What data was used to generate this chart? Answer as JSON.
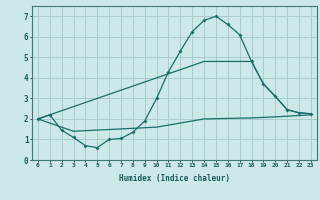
{
  "xlabel": "Humidex (Indice chaleur)",
  "background_color": "#cce8e8",
  "grid_color": "#aacccc",
  "line_color": "#1a6e6a",
  "xlim": [
    -0.5,
    23.5
  ],
  "ylim": [
    0,
    7.5
  ],
  "xticks": [
    0,
    1,
    2,
    3,
    4,
    5,
    6,
    7,
    8,
    9,
    10,
    11,
    12,
    13,
    14,
    15,
    16,
    17,
    18,
    19,
    20,
    21,
    22,
    23
  ],
  "yticks": [
    0,
    1,
    2,
    3,
    4,
    5,
    6,
    7
  ],
  "line1_x": [
    0,
    1,
    2,
    3,
    4,
    5,
    6,
    7,
    8,
    9,
    10,
    11,
    12,
    13,
    14,
    15,
    16,
    17,
    18,
    19,
    20,
    21,
    22,
    23
  ],
  "line1_y": [
    2.0,
    2.2,
    1.45,
    1.1,
    0.7,
    0.6,
    1.0,
    1.05,
    1.35,
    1.9,
    3.0,
    4.3,
    5.3,
    6.25,
    6.8,
    7.0,
    6.6,
    6.1,
    4.8,
    3.7,
    3.1,
    2.45,
    2.3,
    2.25
  ],
  "line2_x": [
    0,
    14,
    15,
    18,
    19,
    20,
    21,
    22,
    23
  ],
  "line2_y": [
    2.0,
    4.8,
    4.8,
    4.8,
    3.7,
    3.1,
    2.45,
    2.3,
    2.25
  ],
  "line3_x": [
    0,
    3,
    10,
    14,
    18,
    20,
    23
  ],
  "line3_y": [
    2.0,
    1.4,
    1.6,
    2.0,
    2.05,
    2.1,
    2.2
  ]
}
